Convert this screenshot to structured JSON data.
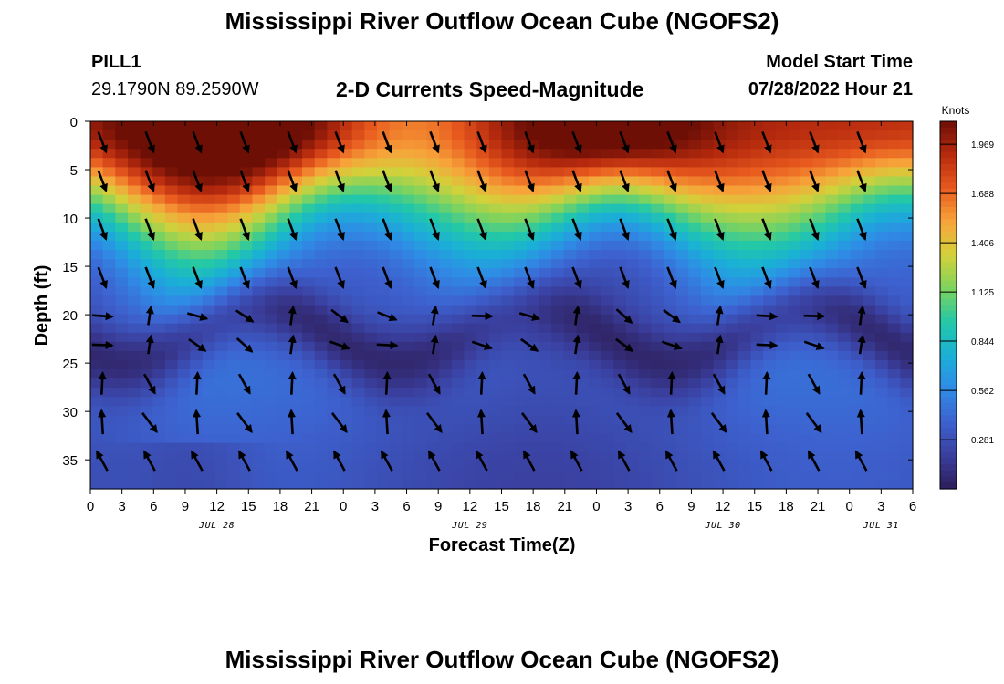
{
  "title": "Mississippi River Outflow Ocean Cube (NGOFS2)",
  "title_repeat": "Mississippi River Outflow Ocean Cube (NGOFS2)",
  "station": {
    "name": "PILL1",
    "coords": "29.1790N  89.2590W"
  },
  "model": {
    "label": "Model Start Time",
    "value": "07/28/2022 Hour 21"
  },
  "chart_data": {
    "type": "heatmap",
    "title": "2-D Currents Speed-Magnitude",
    "xlabel": "Forecast Time(Z)",
    "ylabel": "Depth (ft)",
    "x_tick_labels": [
      "0",
      "3",
      "6",
      "9",
      "12",
      "15",
      "18",
      "21",
      "0",
      "3",
      "6",
      "9",
      "12",
      "15",
      "18",
      "21",
      "0",
      "3",
      "6",
      "9",
      "12",
      "15",
      "18",
      "21",
      "0",
      "3",
      "6"
    ],
    "x_range_hours": [
      0,
      78
    ],
    "date_labels": [
      {
        "label": "JUL 28",
        "hour": 12
      },
      {
        "label": "JUL 29",
        "hour": 36
      },
      {
        "label": "JUL 30",
        "hour": 60
      },
      {
        "label": "JUL 31",
        "hour": 75
      }
    ],
    "y_tick_labels": [
      "0",
      "5",
      "10",
      "15",
      "20",
      "25",
      "30",
      "35"
    ],
    "ylim": [
      0,
      38
    ],
    "y_inverted": true,
    "colorbar": {
      "unit": "Knots",
      "min": 0,
      "max": 2.1,
      "tick_labels": [
        "1.969",
        "1.688",
        "1.406",
        "1.125",
        "0.844",
        "0.562",
        "0.281"
      ],
      "tick_values": [
        1.969,
        1.688,
        1.406,
        1.125,
        0.844,
        0.562,
        0.281
      ]
    },
    "colormap": [
      "#2e1e5a",
      "#3a3f9e",
      "#3d62d0",
      "#2f8be6",
      "#1ab0d6",
      "#23c8a6",
      "#7fd35d",
      "#d3d13a",
      "#f7a33a",
      "#e8591e",
      "#b62a0e",
      "#6e0f06"
    ],
    "surface_max_hours": [
      12,
      48
    ],
    "arrow_direction_note": "surface arrows point south-southeast; deep arrows point north-northwest"
  }
}
